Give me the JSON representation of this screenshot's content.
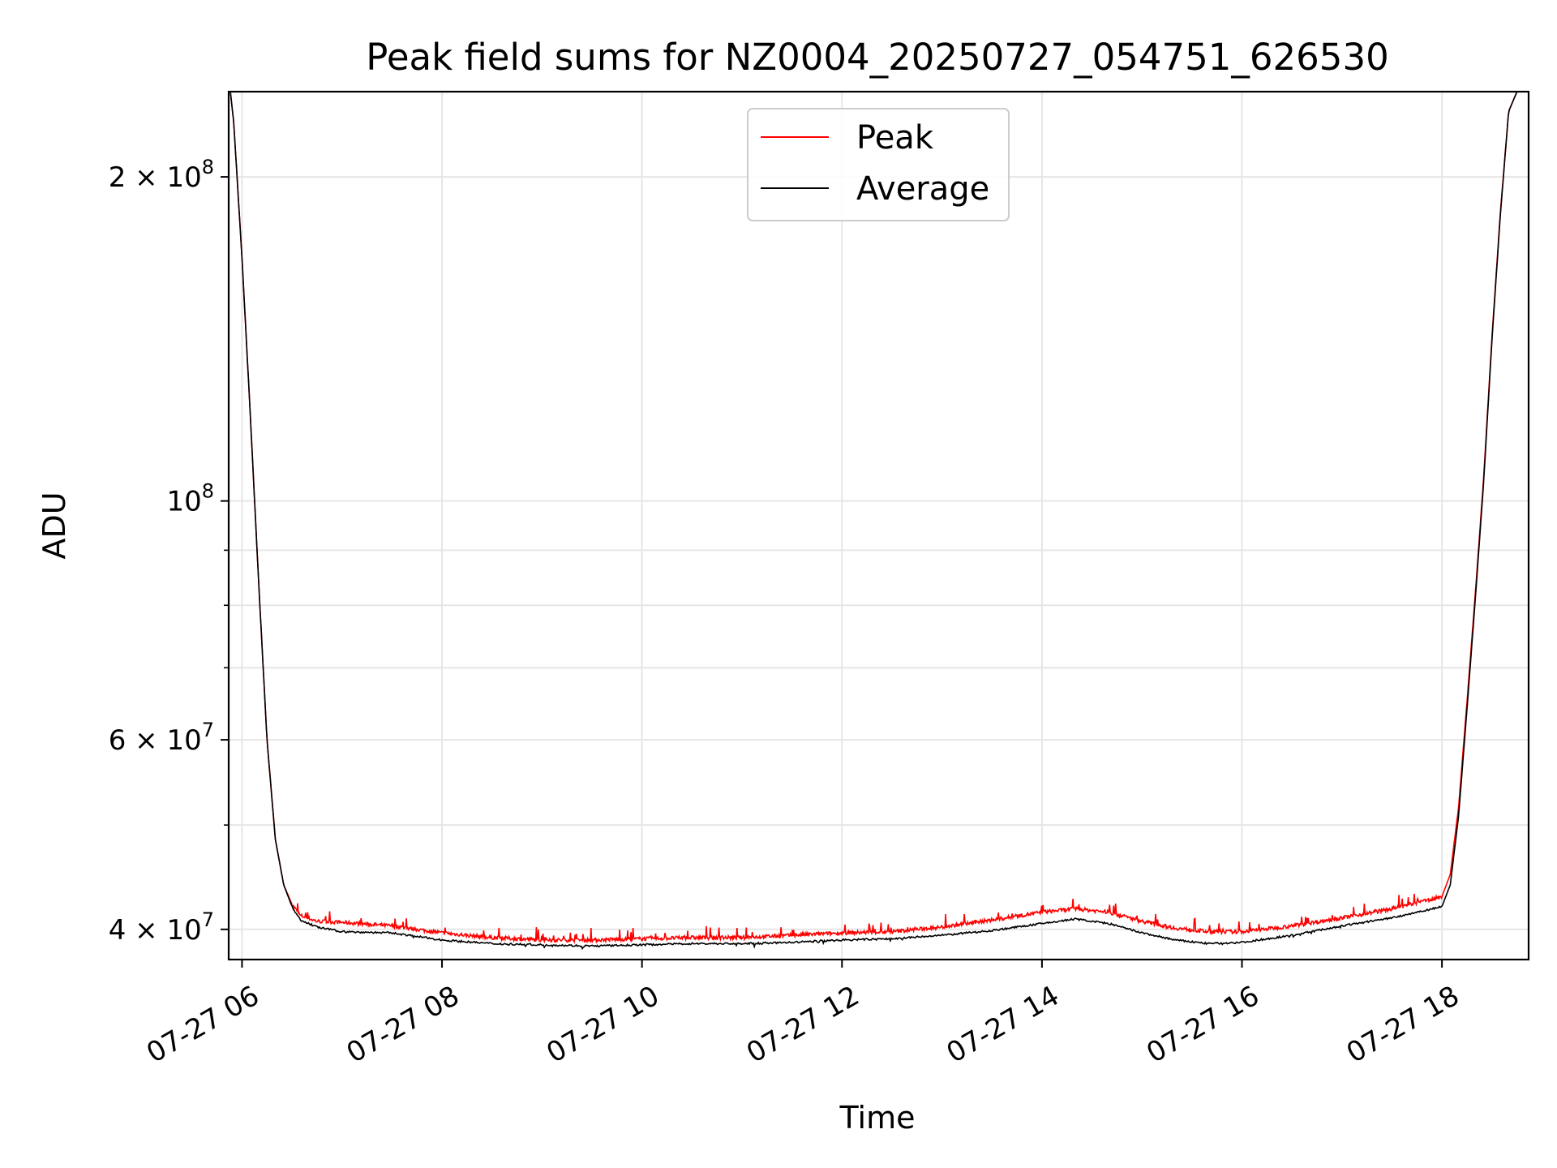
{
  "chart_data": {
    "type": "line",
    "title": "Peak field sums for NZ0004_20250727_054751_626530",
    "xlabel": "Time",
    "ylabel": "ADU",
    "yscale": "log",
    "xlim": [
      "2025-07-27 05:52",
      "2025-07-27 18:52"
    ],
    "ylim": [
      37500000,
      240000000
    ],
    "x_ticks": [
      "07-27 06",
      "07-27 08",
      "07-27 10",
      "07-27 12",
      "07-27 14",
      "07-27 16",
      "07-27 18"
    ],
    "y_ticks": [
      {
        "value": 40000000,
        "mantissa": "4",
        "exp": "7"
      },
      {
        "value": 60000000,
        "mantissa": "6",
        "exp": "7"
      },
      {
        "value": 100000000,
        "mantissa": "",
        "exp": "8"
      },
      {
        "value": 200000000,
        "mantissa": "2",
        "exp": "8"
      }
    ],
    "grid": true,
    "legend_position": "top-center",
    "series": [
      {
        "name": "Peak",
        "color": "#ff0000",
        "x": [
          "05:53",
          "05:55",
          "06:00",
          "06:05",
          "06:10",
          "06:15",
          "06:20",
          "06:25",
          "06:30",
          "06:35",
          "06:45",
          "07:00",
          "07:30",
          "08:00",
          "08:30",
          "09:00",
          "09:30",
          "10:00",
          "10:30",
          "11:00",
          "11:30",
          "12:00",
          "12:30",
          "13:00",
          "13:30",
          "14:00",
          "14:20",
          "14:40",
          "15:00",
          "15:20",
          "15:40",
          "16:00",
          "16:30",
          "17:00",
          "17:30",
          "18:00",
          "18:05",
          "18:10",
          "18:15",
          "18:20",
          "18:25",
          "18:30",
          "18:35",
          "18:40",
          "18:45",
          "18:52"
        ],
        "y": [
          240000000,
          225000000,
          168000000,
          120000000,
          84000000,
          60000000,
          48500000,
          44000000,
          42200000,
          41200000,
          40700000,
          40600000,
          40300000,
          39700000,
          39300000,
          39100000,
          39100000,
          39200000,
          39300000,
          39300000,
          39500000,
          39700000,
          39800000,
          40200000,
          40800000,
          41500000,
          41800000,
          41500000,
          40700000,
          40100000,
          39800000,
          39800000,
          40300000,
          41000000,
          41800000,
          42900000,
          45000000,
          52000000,
          65000000,
          82000000,
          105000000,
          142000000,
          185000000,
          230000000,
          240000000,
          240000000
        ],
        "spikes_percent": 2.5
      },
      {
        "name": "Average",
        "color": "#000000",
        "x": [
          "05:53",
          "05:55",
          "06:00",
          "06:05",
          "06:10",
          "06:15",
          "06:20",
          "06:25",
          "06:30",
          "06:35",
          "06:45",
          "07:00",
          "07:30",
          "08:00",
          "08:30",
          "09:00",
          "09:30",
          "10:00",
          "10:30",
          "11:00",
          "11:30",
          "12:00",
          "12:30",
          "13:00",
          "13:30",
          "14:00",
          "14:20",
          "14:40",
          "15:00",
          "15:20",
          "15:40",
          "16:00",
          "16:30",
          "17:00",
          "17:30",
          "18:00",
          "18:05",
          "18:10",
          "18:15",
          "18:20",
          "18:25",
          "18:30",
          "18:35",
          "18:40",
          "18:45",
          "18:52"
        ],
        "y": [
          240000000,
          225000000,
          168000000,
          120000000,
          84000000,
          60000000,
          48500000,
          44000000,
          42000000,
          40800000,
          40200000,
          39800000,
          39700000,
          39100000,
          38800000,
          38700000,
          38600000,
          38700000,
          38800000,
          38800000,
          38900000,
          39100000,
          39200000,
          39500000,
          39900000,
          40500000,
          40900000,
          40500000,
          39700000,
          39100000,
          38800000,
          38900000,
          39500000,
          40300000,
          41000000,
          42000000,
          44000000,
          51000000,
          64000000,
          81000000,
          104000000,
          141000000,
          184000000,
          230000000,
          240000000,
          240000000
        ]
      }
    ]
  }
}
